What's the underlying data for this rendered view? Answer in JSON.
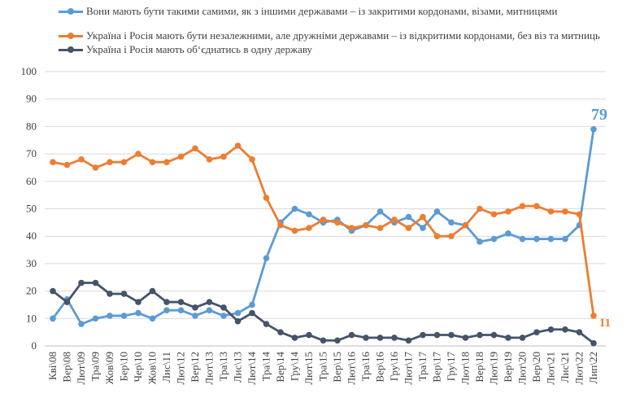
{
  "chart_data": {
    "type": "line",
    "title": "",
    "xlabel": "",
    "ylabel": "",
    "ylim": [
      0,
      100
    ],
    "yticks": [
      0,
      10,
      20,
      30,
      40,
      50,
      60,
      70,
      80,
      90,
      100
    ],
    "grid": true,
    "legend_position": "top",
    "categories": [
      "Кві\\08",
      "Вер\\08",
      "Лют\\09",
      "Тра\\09",
      "Жов\\09",
      "Бер\\10",
      "Чер\\10",
      "Жов\\10",
      "Лис\\11",
      "Лют\\12",
      "Вер\\12",
      "Лют\\13",
      "Тра\\13",
      "Лис\\13",
      "Лют\\14",
      "Тра\\14",
      "Вер\\14",
      "Гру\\14",
      "Лют\\15",
      "Тра\\15",
      "Вер\\15",
      "Лют\\16",
      "Тра\\16",
      "Вер\\16",
      "Гру\\16",
      "Лют\\17",
      "Тра\\17",
      "Вер\\17",
      "Гру\\17",
      "Лют\\18",
      "Вер\\18",
      "Лют\\19",
      "Вер\\19",
      "Лют\\20",
      "Вер\\20",
      "Лют\\21",
      "Лис\\21",
      "Лют\\22",
      "Лип\\22"
    ],
    "series": [
      {
        "name": "Вони мають бути такими самими, як з іншими державами – із закритими кордонами, візами, митницями",
        "color": "#5b9bd5",
        "values": [
          10,
          17,
          8,
          10,
          11,
          11,
          12,
          10,
          13,
          13,
          11,
          13,
          11,
          12,
          15,
          32,
          45,
          50,
          48,
          45,
          46,
          42,
          44,
          49,
          45,
          47,
          43,
          49,
          45,
          44,
          38,
          39,
          41,
          39,
          39,
          39,
          39,
          44,
          79
        ],
        "end_label": "79"
      },
      {
        "name": "Україна і Росія мають бути незалежними, але дружніми державами – із відкритими кордонами, без віз та митниць",
        "color": "#ed7d31",
        "values": [
          67,
          66,
          68,
          65,
          67,
          67,
          70,
          67,
          67,
          69,
          72,
          68,
          69,
          73,
          68,
          54,
          44,
          42,
          43,
          46,
          45,
          43,
          44,
          43,
          46,
          43,
          47,
          40,
          40,
          44,
          50,
          48,
          49,
          51,
          51,
          49,
          49,
          48,
          11
        ],
        "end_label": "11"
      },
      {
        "name": "Україна і Росія мають об‘єднатись в одну державу",
        "color": "#44546a",
        "values": [
          20,
          16,
          23,
          23,
          19,
          19,
          16,
          20,
          16,
          16,
          14,
          16,
          14,
          9,
          12,
          8,
          5,
          3,
          4,
          2,
          2,
          4,
          3,
          3,
          3,
          2,
          4,
          4,
          4,
          3,
          4,
          4,
          3,
          3,
          5,
          6,
          6,
          5,
          1
        ]
      }
    ]
  }
}
